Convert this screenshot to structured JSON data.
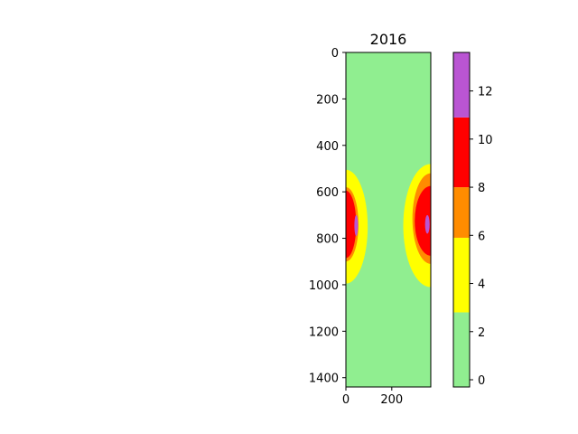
{
  "chart_data": {
    "type": "heatmap",
    "title": "2016",
    "xlabel": "",
    "ylabel": "",
    "xlim": [
      0,
      370
    ],
    "ylim": [
      1440,
      0
    ],
    "x_ticks": [
      0,
      200
    ],
    "x_tick_labels": [
      "0",
      "200"
    ],
    "y_ticks": [
      0,
      200,
      400,
      600,
      800,
      1000,
      1200,
      1400
    ],
    "y_tick_labels": [
      "0",
      "200",
      "400",
      "600",
      "800",
      "1000",
      "1200",
      "1400"
    ],
    "colorbar": {
      "range": [
        -0.3,
        13.6
      ],
      "ticks": [
        0,
        2,
        4,
        6,
        8,
        10,
        12
      ],
      "tick_labels": [
        "0",
        "2",
        "4",
        "6",
        "8",
        "10",
        "12"
      ],
      "levels": [
        {
          "from": -0.3,
          "to": 2.8,
          "color": "#90ee90"
        },
        {
          "from": 2.8,
          "to": 5.9,
          "color": "#ffff00"
        },
        {
          "from": 5.9,
          "to": 8.0,
          "color": "#ff8c00"
        },
        {
          "from": 8.0,
          "to": 10.9,
          "color": "#ff0000"
        },
        {
          "from": 10.9,
          "to": 13.6,
          "color": "#ba55d3"
        }
      ]
    },
    "background_value": 0,
    "regions": [
      {
        "name": "left-yellow",
        "value": 4,
        "cx": 0,
        "cy": 750,
        "rx": 95,
        "ry": 245,
        "color": "#ffff00"
      },
      {
        "name": "left-orange",
        "value": 7,
        "cx": 0,
        "cy": 740,
        "rx": 55,
        "ry": 160,
        "color": "#ff8c00"
      },
      {
        "name": "left-red",
        "value": 9,
        "cx": 0,
        "cy": 740,
        "rx": 45,
        "ry": 145,
        "color": "#ff0000"
      },
      {
        "name": "left-purple",
        "value": 12,
        "cx": 45,
        "cy": 745,
        "rx": 8,
        "ry": 45,
        "color": "#ba55d3"
      },
      {
        "name": "right-yellow",
        "value": 4,
        "cx": 370,
        "cy": 745,
        "rx": 120,
        "ry": 265,
        "color": "#ffff00"
      },
      {
        "name": "right-orange",
        "value": 7,
        "cx": 370,
        "cy": 715,
        "rx": 80,
        "ry": 195,
        "color": "#ff8c00"
      },
      {
        "name": "right-red",
        "value": 9,
        "cx": 370,
        "cy": 725,
        "rx": 70,
        "ry": 150,
        "color": "#ff0000"
      },
      {
        "name": "right-purple",
        "value": 12,
        "cx": 355,
        "cy": 740,
        "rx": 10,
        "ry": 40,
        "color": "#ba55d3"
      }
    ],
    "colors": {
      "background": "#90ee90",
      "axis": "#000000"
    }
  }
}
